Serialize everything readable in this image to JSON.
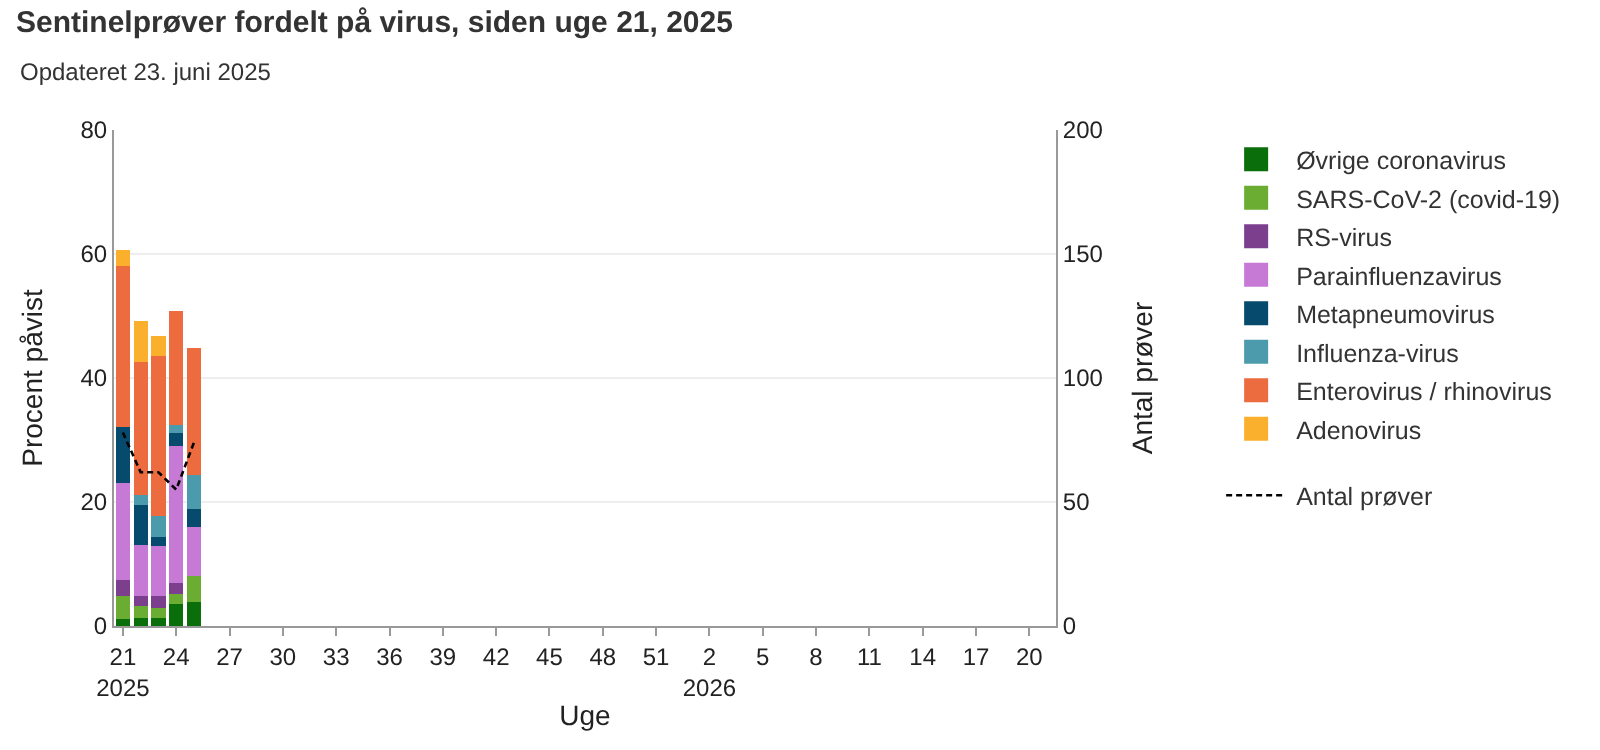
{
  "chart_data": {
    "type": "bar",
    "stacked": true,
    "title": "Sentinelprøver fordelt på virus, siden uge 21, 2025",
    "subtitle": "Opdateret 23. juni 2025",
    "xlabel": "Uge",
    "ylabel": "Procent påvist",
    "y2label": "Antal prøver",
    "categories": [
      "21\n2025",
      null,
      null,
      "24",
      null,
      null,
      "27",
      null,
      null,
      "30",
      null,
      null,
      "33",
      null,
      null,
      "36",
      null,
      null,
      "39",
      null,
      null,
      "42",
      null,
      null,
      "45",
      null,
      null,
      "48",
      null,
      null,
      "51",
      null,
      null,
      "2\n2026",
      null,
      null,
      "5",
      null,
      null,
      "8",
      null,
      null,
      "11",
      null,
      null,
      "14",
      null,
      null,
      "17",
      null,
      null,
      "20",
      null
    ],
    "ylim": [
      0,
      80
    ],
    "yticks": [
      0,
      20,
      40,
      60,
      80
    ],
    "y2lim": [
      0,
      200
    ],
    "y2ticks": [
      0,
      50,
      100,
      150,
      200
    ],
    "grid": "y",
    "legend": "right",
    "series": [
      {
        "name": "Øvrige coronavirus",
        "color": "#0a6e0a",
        "values": [
          1.1,
          1.3,
          1.3,
          3.5,
          3.8,
          null,
          null,
          null,
          null,
          null,
          null,
          null,
          null,
          null,
          null,
          null,
          null,
          null,
          null,
          null,
          null,
          null,
          null,
          null,
          null,
          null,
          null,
          null,
          null,
          null,
          null,
          null,
          null,
          null,
          null,
          null,
          null,
          null,
          null,
          null,
          null,
          null,
          null,
          null,
          null,
          null,
          null,
          null,
          null,
          null,
          null,
          null,
          null
        ]
      },
      {
        "name": "SARS-CoV-2 (covid-19)",
        "color": "#6aad32",
        "values": [
          3.7,
          1.9,
          1.6,
          1.6,
          4.3,
          null,
          null,
          null,
          null,
          null,
          null,
          null,
          null,
          null,
          null,
          null,
          null,
          null,
          null,
          null,
          null,
          null,
          null,
          null,
          null,
          null,
          null,
          null,
          null,
          null,
          null,
          null,
          null,
          null,
          null,
          null,
          null,
          null,
          null,
          null,
          null,
          null,
          null,
          null,
          null,
          null,
          null,
          null,
          null,
          null,
          null,
          null,
          null
        ]
      },
      {
        "name": "RS-virus",
        "color": "#7b3f8e",
        "values": [
          2.6,
          1.6,
          1.9,
          1.9,
          0,
          null,
          null,
          null,
          null,
          null,
          null,
          null,
          null,
          null,
          null,
          null,
          null,
          null,
          null,
          null,
          null,
          null,
          null,
          null,
          null,
          null,
          null,
          null,
          null,
          null,
          null,
          null,
          null,
          null,
          null,
          null,
          null,
          null,
          null,
          null,
          null,
          null,
          null,
          null,
          null,
          null,
          null,
          null,
          null,
          null,
          null,
          null,
          null
        ]
      },
      {
        "name": "Parainfluenzavirus",
        "color": "#c67ad6",
        "values": [
          15.7,
          8.3,
          8.1,
          22.1,
          7.9,
          null,
          null,
          null,
          null,
          null,
          null,
          null,
          null,
          null,
          null,
          null,
          null,
          null,
          null,
          null,
          null,
          null,
          null,
          null,
          null,
          null,
          null,
          null,
          null,
          null,
          null,
          null,
          null,
          null,
          null,
          null,
          null,
          null,
          null,
          null,
          null,
          null,
          null,
          null,
          null,
          null,
          null,
          null,
          null,
          null,
          null,
          null,
          null
        ]
      },
      {
        "name": "Metapneumovirus",
        "color": "#064a6e",
        "values": [
          9.0,
          6.4,
          1.5,
          2.0,
          2.9,
          null,
          null,
          null,
          null,
          null,
          null,
          null,
          null,
          null,
          null,
          null,
          null,
          null,
          null,
          null,
          null,
          null,
          null,
          null,
          null,
          null,
          null,
          null,
          null,
          null,
          null,
          null,
          null,
          null,
          null,
          null,
          null,
          null,
          null,
          null,
          null,
          null,
          null,
          null,
          null,
          null,
          null,
          null,
          null,
          null,
          null,
          null,
          null
        ]
      },
      {
        "name": "Influenza-virus",
        "color": "#4c9bac",
        "values": [
          0,
          1.6,
          3.3,
          1.4,
          5.4,
          null,
          null,
          null,
          null,
          null,
          null,
          null,
          null,
          null,
          null,
          null,
          null,
          null,
          null,
          null,
          null,
          null,
          null,
          null,
          null,
          null,
          null,
          null,
          null,
          null,
          null,
          null,
          null,
          null,
          null,
          null,
          null,
          null,
          null,
          null,
          null,
          null,
          null,
          null,
          null,
          null,
          null,
          null,
          null,
          null,
          null,
          null,
          null
        ]
      },
      {
        "name": "Enterovirus / rhinovirus",
        "color": "#ec6b3f",
        "values": [
          25.9,
          21.5,
          25.8,
          18.3,
          20.5,
          null,
          null,
          null,
          null,
          null,
          null,
          null,
          null,
          null,
          null,
          null,
          null,
          null,
          null,
          null,
          null,
          null,
          null,
          null,
          null,
          null,
          null,
          null,
          null,
          null,
          null,
          null,
          null,
          null,
          null,
          null,
          null,
          null,
          null,
          null,
          null,
          null,
          null,
          null,
          null,
          null,
          null,
          null,
          null,
          null,
          null,
          null,
          null
        ]
      },
      {
        "name": "Adenovirus",
        "color": "#fbb02d",
        "values": [
          2.7,
          6.6,
          3.2,
          0,
          0,
          null,
          null,
          null,
          null,
          null,
          null,
          null,
          null,
          null,
          null,
          null,
          null,
          null,
          null,
          null,
          null,
          null,
          null,
          null,
          null,
          null,
          null,
          null,
          null,
          null,
          null,
          null,
          null,
          null,
          null,
          null,
          null,
          null,
          null,
          null,
          null,
          null,
          null,
          null,
          null,
          null,
          null,
          null,
          null,
          null,
          null,
          null,
          null
        ]
      },
      {
        "name": "Antal prøver",
        "type": "line",
        "axis": "y2",
        "color": "#000000",
        "line_style": "dashed",
        "marker": "none",
        "values": [
          78,
          62,
          62,
          55,
          74,
          null,
          null,
          null,
          null,
          null,
          null,
          null,
          null,
          null,
          null,
          null,
          null,
          null,
          null,
          null,
          null,
          null,
          null,
          null,
          null,
          null,
          null,
          null,
          null,
          null,
          null,
          null,
          null,
          null,
          null,
          null,
          null,
          null,
          null,
          null,
          null,
          null,
          null,
          null,
          null,
          null,
          null,
          null,
          null,
          null,
          null,
          null,
          null
        ]
      }
    ]
  }
}
